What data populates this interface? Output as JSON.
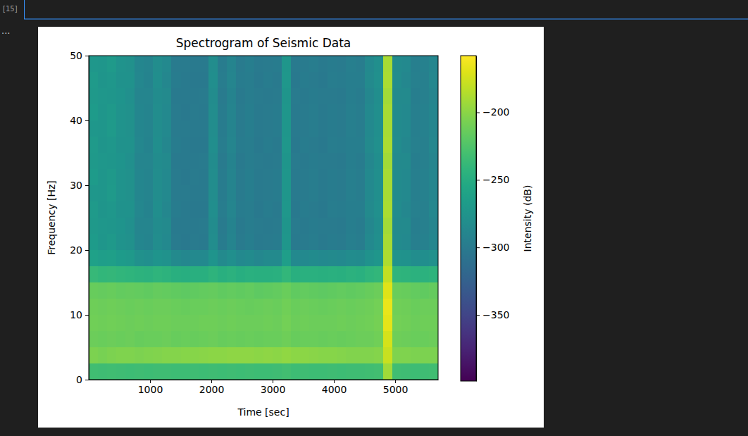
{
  "notebook": {
    "cell_label": "[15]",
    "output_prompt": "..."
  },
  "chart_data": {
    "type": "heatmap",
    "title": "Spectrogram of Seismic Data",
    "x_label": "Time [sec]",
    "y_label": "Frequency [Hz]",
    "colorbar_label": "Intensity (dB)",
    "color": "viridis",
    "xlim": [
      0,
      5700
    ],
    "ylim": [
      0,
      50
    ],
    "xticks": [
      1000,
      2000,
      3000,
      4000,
      5000
    ],
    "yticks": [
      0,
      10,
      20,
      30,
      40,
      50
    ],
    "clim": [
      -399,
      -158
    ],
    "cticks": [
      {
        "value": -200,
        "label": "−200"
      },
      {
        "value": -250,
        "label": "−250"
      },
      {
        "value": -300,
        "label": "−300"
      },
      {
        "value": -350,
        "label": "−350"
      }
    ],
    "xbins": [
      0,
      150,
      300,
      450,
      600,
      750,
      900,
      1050,
      1200,
      1350,
      1500,
      1650,
      1800,
      1950,
      2100,
      2250,
      2400,
      2550,
      2700,
      2850,
      3000,
      3150,
      3300,
      3450,
      3600,
      3750,
      3900,
      4050,
      4200,
      4350,
      4500,
      4650,
      4800,
      4950,
      5100,
      5250,
      5400,
      5550,
      5700
    ],
    "ybins": [
      0,
      2.5,
      5,
      7.5,
      10,
      12.5,
      15,
      17.5,
      20,
      22.5,
      25,
      27.5,
      30,
      32.5,
      35,
      37.5,
      40,
      42.5,
      45,
      47.5,
      50
    ],
    "cells": [
      [
        -232,
        -233,
        -232,
        -233,
        -234,
        -233,
        -234,
        -233,
        -233,
        -234,
        -234,
        -233,
        -234,
        -233,
        -234,
        -233,
        -234,
        -233,
        -234,
        -234,
        -233,
        -231,
        -234,
        -233,
        -234,
        -234,
        -233,
        -234,
        -233,
        -233,
        -232,
        -231,
        -192,
        -232,
        -233,
        -234,
        -233,
        -232
      ],
      [
        -206,
        -207,
        -206,
        -205,
        -205,
        -206,
        -205,
        -204,
        -203,
        -203,
        -202,
        -202,
        -201,
        -200,
        -200,
        -199,
        -199,
        -199,
        -200,
        -199,
        -200,
        -198,
        -200,
        -200,
        -201,
        -202,
        -202,
        -203,
        -204,
        -204,
        -204,
        -203,
        -178,
        -205,
        -205,
        -206,
        -206,
        -206
      ],
      [
        -212,
        -213,
        -212,
        -213,
        -212,
        -214,
        -213,
        -213,
        -212,
        -214,
        -213,
        -214,
        -213,
        -212,
        -214,
        -213,
        -214,
        -213,
        -214,
        -213,
        -213,
        -211,
        -214,
        -213,
        -213,
        -214,
        -213,
        -214,
        -213,
        -212,
        -212,
        -210,
        -174,
        -211,
        -212,
        -213,
        -213,
        -212
      ],
      [
        -210,
        -211,
        -210,
        -211,
        -212,
        -211,
        -212,
        -211,
        -211,
        -212,
        -212,
        -212,
        -211,
        -211,
        -212,
        -211,
        -212,
        -212,
        -212,
        -211,
        -212,
        -209,
        -212,
        -211,
        -212,
        -212,
        -212,
        -211,
        -212,
        -211,
        -210,
        -208,
        -168,
        -209,
        -210,
        -212,
        -211,
        -211
      ],
      [
        -211,
        -212,
        -211,
        -212,
        -213,
        -212,
        -213,
        -212,
        -212,
        -213,
        -214,
        -213,
        -213,
        -212,
        -213,
        -212,
        -213,
        -214,
        -213,
        -212,
        -213,
        -210,
        -213,
        -212,
        -213,
        -214,
        -213,
        -212,
        -213,
        -212,
        -211,
        -209,
        -166,
        -210,
        -211,
        -213,
        -212,
        -212
      ],
      [
        -214,
        -215,
        -214,
        -216,
        -215,
        -216,
        -217,
        -215,
        -216,
        -217,
        -218,
        -217,
        -216,
        -215,
        -217,
        -216,
        -217,
        -216,
        -218,
        -217,
        -216,
        -213,
        -217,
        -216,
        -217,
        -218,
        -217,
        -216,
        -217,
        -216,
        -214,
        -212,
        -170,
        -213,
        -214,
        -216,
        -217,
        -215
      ],
      [
        -238,
        -240,
        -239,
        -241,
        -242,
        -244,
        -245,
        -242,
        -244,
        -247,
        -248,
        -247,
        -247,
        -243,
        -247,
        -245,
        -248,
        -246,
        -247,
        -247,
        -246,
        -240,
        -247,
        -246,
        -246,
        -247,
        -246,
        -247,
        -245,
        -246,
        -242,
        -240,
        -180,
        -242,
        -243,
        -245,
        -245,
        -243
      ],
      [
        -262,
        -265,
        -264,
        -268,
        -270,
        -278,
        -280,
        -274,
        -277,
        -285,
        -287,
        -286,
        -286,
        -274,
        -285,
        -280,
        -286,
        -284,
        -287,
        -285,
        -285,
        -265,
        -286,
        -286,
        -284,
        -286,
        -285,
        -286,
        -283,
        -284,
        -276,
        -272,
        -188,
        -275,
        -276,
        -282,
        -281,
        -278
      ],
      [
        -268,
        -272,
        -270,
        -275,
        -278,
        -288,
        -290,
        -282,
        -286,
        -300,
        -302,
        -300,
        -301,
        -282,
        -299,
        -290,
        -300,
        -297,
        -301,
        -300,
        -299,
        -272,
        -301,
        -300,
        -298,
        -301,
        -299,
        -300,
        -296,
        -298,
        -286,
        -280,
        -190,
        -284,
        -286,
        -296,
        -294,
        -288
      ],
      [
        -270,
        -271,
        -272,
        -274,
        -279,
        -289,
        -289,
        -283,
        -285,
        -301,
        -301,
        -301,
        -300,
        -283,
        -300,
        -291,
        -301,
        -298,
        -300,
        -301,
        -300,
        -273,
        -300,
        -301,
        -299,
        -300,
        -300,
        -301,
        -297,
        -299,
        -287,
        -281,
        -191,
        -285,
        -285,
        -297,
        -295,
        -289
      ],
      [
        -269,
        -273,
        -271,
        -276,
        -277,
        -287,
        -291,
        -281,
        -287,
        -299,
        -301,
        -302,
        -302,
        -281,
        -298,
        -289,
        -299,
        -298,
        -302,
        -299,
        -301,
        -271,
        -302,
        -299,
        -300,
        -302,
        -298,
        -299,
        -297,
        -297,
        -285,
        -279,
        -189,
        -283,
        -287,
        -295,
        -295,
        -287
      ],
      [
        -271,
        -272,
        -269,
        -275,
        -278,
        -288,
        -290,
        -282,
        -286,
        -300,
        -300,
        -301,
        -301,
        -282,
        -299,
        -290,
        -300,
        -297,
        -301,
        -300,
        -299,
        -272,
        -301,
        -300,
        -298,
        -301,
        -299,
        -300,
        -296,
        -298,
        -286,
        -280,
        -190,
        -284,
        -286,
        -296,
        -294,
        -288
      ],
      [
        -268,
        -272,
        -270,
        -275,
        -278,
        -288,
        -290,
        -282,
        -286,
        -300,
        -302,
        -300,
        -301,
        -282,
        -299,
        -290,
        -300,
        -297,
        -301,
        -300,
        -299,
        -272,
        -301,
        -300,
        -298,
        -301,
        -299,
        -300,
        -296,
        -298,
        -286,
        -280,
        -190,
        -284,
        -286,
        -296,
        -294,
        -288
      ],
      [
        -270,
        -271,
        -272,
        -274,
        -279,
        -289,
        -289,
        -283,
        -285,
        -301,
        -301,
        -301,
        -300,
        -283,
        -300,
        -291,
        -301,
        -298,
        -300,
        -301,
        -300,
        -273,
        -300,
        -301,
        -299,
        -300,
        -300,
        -301,
        -297,
        -299,
        -287,
        -281,
        -191,
        -285,
        -285,
        -297,
        -295,
        -289
      ],
      [
        -269,
        -273,
        -271,
        -276,
        -277,
        -287,
        -291,
        -281,
        -287,
        -299,
        -301,
        -302,
        -302,
        -281,
        -298,
        -289,
        -299,
        -298,
        -302,
        -299,
        -301,
        -271,
        -302,
        -299,
        -300,
        -302,
        -298,
        -299,
        -297,
        -297,
        -285,
        -279,
        -189,
        -283,
        -287,
        -295,
        -295,
        -287
      ],
      [
        -271,
        -272,
        -269,
        -275,
        -278,
        -288,
        -290,
        -282,
        -286,
        -300,
        -300,
        -301,
        -301,
        -282,
        -299,
        -290,
        -300,
        -297,
        -301,
        -300,
        -299,
        -272,
        -301,
        -300,
        -298,
        -301,
        -299,
        -300,
        -296,
        -298,
        -286,
        -280,
        -190,
        -284,
        -286,
        -296,
        -294,
        -288
      ],
      [
        -268,
        -272,
        -270,
        -275,
        -278,
        -288,
        -290,
        -282,
        -286,
        -300,
        -302,
        -300,
        -301,
        -282,
        -299,
        -290,
        -300,
        -297,
        -301,
        -300,
        -299,
        -272,
        -301,
        -300,
        -298,
        -301,
        -299,
        -300,
        -296,
        -298,
        -286,
        -280,
        -190,
        -284,
        -286,
        -296,
        -294,
        -288
      ],
      [
        -270,
        -271,
        -272,
        -274,
        -279,
        -289,
        -289,
        -283,
        -285,
        -301,
        -301,
        -301,
        -300,
        -283,
        -300,
        -291,
        -301,
        -298,
        -300,
        -301,
        -300,
        -273,
        -300,
        -301,
        -299,
        -300,
        -300,
        -301,
        -297,
        -299,
        -287,
        -281,
        -191,
        -285,
        -285,
        -297,
        -295,
        -289
      ],
      [
        -269,
        -273,
        -271,
        -276,
        -277,
        -287,
        -291,
        -281,
        -287,
        -299,
        -301,
        -302,
        -302,
        -281,
        -298,
        -289,
        -299,
        -298,
        -302,
        -299,
        -301,
        -271,
        -302,
        -299,
        -300,
        -302,
        -298,
        -299,
        -297,
        -297,
        -285,
        -279,
        -189,
        -283,
        -287,
        -295,
        -295,
        -287
      ],
      [
        -271,
        -272,
        -269,
        -275,
        -278,
        -288,
        -290,
        -282,
        -286,
        -300,
        -300,
        -301,
        -301,
        -282,
        -299,
        -290,
        -300,
        -297,
        -301,
        -300,
        -299,
        -272,
        -301,
        -300,
        -298,
        -301,
        -299,
        -300,
        -296,
        -298,
        -286,
        -280,
        -190,
        -284,
        -286,
        -296,
        -294,
        -288
      ]
    ]
  }
}
